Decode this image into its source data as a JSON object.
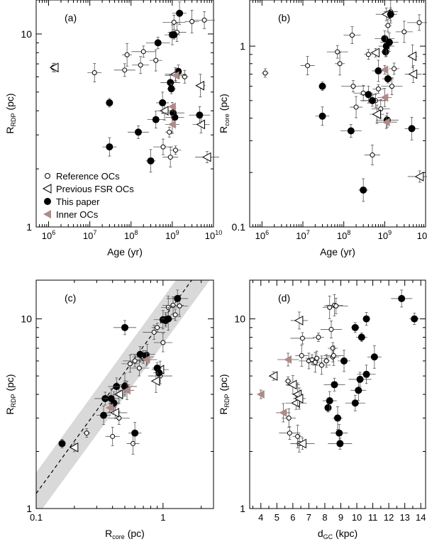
{
  "figure": {
    "panels": [
      {
        "key": "a",
        "panel_label": "(a)"
      },
      {
        "key": "b",
        "panel_label": "(b)"
      },
      {
        "key": "c",
        "panel_label": "(c)"
      },
      {
        "key": "d",
        "panel_label": "(d)"
      }
    ]
  },
  "legend": {
    "entries": [
      {
        "label": "Reference OCs",
        "marker": "open-circle"
      },
      {
        "label": "Previous FSR OCs",
        "marker": "open-triangle-left"
      },
      {
        "label": "This paper",
        "marker": "filled-circle"
      },
      {
        "label": "Inner OCs",
        "marker": "filled-triangle-left"
      }
    ]
  },
  "colors": {
    "inner_ocs": "#b08a88",
    "band": "#d9d9d9"
  },
  "chart_data": [
    {
      "type": "scatter",
      "panel": "a",
      "scale": "log-log",
      "grid": false,
      "legend_position": "bottom-left",
      "xlabel": "Age (yr)",
      "ylabel": "R_RDP (pc)",
      "xlim": [
        500000,
        10000000000
      ],
      "ylim": [
        1,
        15
      ],
      "xticks": [
        {
          "v": 1000000,
          "b": "10",
          "e": "6"
        },
        {
          "v": 10000000,
          "b": "10",
          "e": "7"
        },
        {
          "v": 100000000,
          "b": "10",
          "e": "8"
        },
        {
          "v": 1000000000,
          "b": "10",
          "e": "9"
        },
        {
          "v": 10000000000,
          "b": "10",
          "e": "10"
        }
      ],
      "yticks": [
        {
          "v": 1,
          "t": "1"
        },
        {
          "v": 10,
          "t": "10"
        }
      ],
      "series": [
        {
          "name": "Reference OCs",
          "marker": "open-circle",
          "points": [
            [
              1300000,
              6.7
            ],
            [
              13000000,
              6.3
            ],
            [
              70000000,
              6.5
            ],
            [
              80000000,
              7.8
            ],
            [
              170000000,
              6.9
            ],
            [
              200000000,
              8.1
            ],
            [
              400000000,
              7.3
            ],
            [
              600000000,
              2.6
            ],
            [
              850000000,
              3.1
            ],
            [
              900000000,
              2.3
            ],
            [
              1100000000,
              11.5
            ],
            [
              1200000000,
              2.5
            ],
            [
              1300000000,
              10.2
            ],
            [
              2000000000,
              6.0
            ],
            [
              3000000000,
              11.6
            ],
            [
              6000000000,
              11.8
            ]
          ]
        },
        {
          "name": "Previous FSR OCs",
          "marker": "open-triangle-left",
          "points": [
            [
              1400000,
              6.7
            ],
            [
              650000000,
              4.0
            ],
            [
              1200000000,
              6.2
            ],
            [
              4800000000,
              5.4
            ],
            [
              5000000000,
              3.4
            ],
            [
              7000000000,
              2.3
            ]
          ]
        },
        {
          "name": "This paper",
          "marker": "filled-circle",
          "points": [
            [
              30000000,
              4.4
            ],
            [
              30000000,
              2.6
            ],
            [
              150000000,
              3.1
            ],
            [
              300000000,
              2.2
            ],
            [
              400000000,
              3.6
            ],
            [
              450000000,
              9.0
            ],
            [
              580000000,
              4.4
            ],
            [
              900000000,
              5.6
            ],
            [
              950000000,
              5.2
            ],
            [
              1000000000,
              9.9
            ],
            [
              1050000000,
              3.9
            ],
            [
              1100000000,
              9.9
            ],
            [
              1150000000,
              3.7
            ],
            [
              1400000000,
              6.4
            ],
            [
              1500000000,
              12.8
            ],
            [
              4600000000,
              3.8
            ]
          ]
        },
        {
          "name": "Inner OCs",
          "marker": "filled-triangle-left",
          "points": [
            [
              1000000000,
              4.2
            ],
            [
              1000000000,
              3.4
            ],
            [
              1200000000,
              6.1
            ]
          ]
        }
      ]
    },
    {
      "type": "scatter",
      "panel": "b",
      "scale": "log-log",
      "grid": false,
      "xlabel": "Age (yr)",
      "ylabel": "R_core (pc)",
      "xlim": [
        500000,
        10000000000
      ],
      "ylim": [
        0.1,
        1.8
      ],
      "xticks": [
        {
          "v": 1000000,
          "b": "10",
          "e": "6"
        },
        {
          "v": 10000000,
          "b": "10",
          "e": "7"
        },
        {
          "v": 100000000,
          "b": "10",
          "e": "8"
        },
        {
          "v": 1000000000,
          "b": "10",
          "e": "9"
        },
        {
          "v": 10000000000,
          "b": "10",
          "e": "10"
        }
      ],
      "yticks": [
        {
          "v": 0.1,
          "t": "0.1"
        },
        {
          "v": 1,
          "t": "1"
        }
      ],
      "series": [
        {
          "name": "Reference OCs",
          "marker": "open-circle",
          "points": [
            [
              1200000,
              0.71
            ],
            [
              13000000,
              0.78
            ],
            [
              70000000,
              0.93
            ],
            [
              80000000,
              0.8
            ],
            [
              160000000,
              1.15
            ],
            [
              170000000,
              0.6
            ],
            [
              200000000,
              0.46
            ],
            [
              300000000,
              0.55
            ],
            [
              400000000,
              0.9
            ],
            [
              500000000,
              0.25
            ],
            [
              600000000,
              0.5
            ],
            [
              700000000,
              0.58
            ],
            [
              800000000,
              0.45
            ],
            [
              1200000000,
              1.3
            ],
            [
              1400000000,
              1.55
            ],
            [
              1500000000,
              0.6
            ],
            [
              1700000000,
              0.75
            ],
            [
              3000000000,
              1.2
            ],
            [
              7000000000,
              1.35
            ]
          ]
        },
        {
          "name": "Previous FSR OCs",
          "marker": "open-triangle-left",
          "points": [
            [
              600000000,
              0.92
            ],
            [
              650000000,
              0.42
            ],
            [
              1100000000,
              1.5
            ],
            [
              4800000000,
              0.88
            ],
            [
              5000000000,
              0.7
            ],
            [
              7200000000,
              0.19
            ]
          ]
        },
        {
          "name": "This paper",
          "marker": "filled-circle",
          "points": [
            [
              30000000,
              0.6
            ],
            [
              30000000,
              0.41
            ],
            [
              150000000,
              0.34
            ],
            [
              300000000,
              0.16
            ],
            [
              400000000,
              0.54
            ],
            [
              500000000,
              0.5
            ],
            [
              700000000,
              0.73
            ],
            [
              1000000000,
              1.1
            ],
            [
              1050000000,
              0.93
            ],
            [
              1100000000,
              1.0
            ],
            [
              1150000000,
              0.39
            ],
            [
              1200000000,
              0.66
            ],
            [
              1300000000,
              1.05
            ],
            [
              1400000000,
              1.5
            ],
            [
              4600000000,
              0.35
            ]
          ]
        },
        {
          "name": "Inner OCs",
          "marker": "filled-triangle-left",
          "points": [
            [
              1000000000,
              0.74
            ],
            [
              1000000000,
              0.52
            ],
            [
              1100000000,
              0.38
            ]
          ]
        }
      ]
    },
    {
      "type": "scatter",
      "panel": "c",
      "scale": "log-log",
      "grid": false,
      "xlabel": "R_core (pc)",
      "ylabel": "R_RDP (pc)",
      "xlim": [
        0.1,
        2.5
      ],
      "ylim": [
        1,
        16
      ],
      "xticks": [
        {
          "v": 0.1,
          "t": "0.1"
        },
        {
          "v": 1,
          "t": "1"
        }
      ],
      "yticks": [
        {
          "v": 1,
          "t": "1"
        },
        {
          "v": 10,
          "t": "10"
        }
      ],
      "series": [
        {
          "name": "Reference OCs",
          "marker": "open-circle",
          "points": [
            [
              0.25,
              2.5
            ],
            [
              0.4,
              2.4
            ],
            [
              0.45,
              3.0
            ],
            [
              0.5,
              4.5
            ],
            [
              0.55,
              5.8
            ],
            [
              0.6,
              6.0
            ],
            [
              0.58,
              2.2
            ],
            [
              0.65,
              5.5
            ],
            [
              0.7,
              6.2
            ],
            [
              0.75,
              6.5
            ],
            [
              0.85,
              8.5
            ],
            [
              0.9,
              9.0
            ],
            [
              1.0,
              7.5
            ],
            [
              1.05,
              10.0
            ],
            [
              1.1,
              11.5
            ],
            [
              1.2,
              11.8
            ],
            [
              1.25,
              10.5
            ],
            [
              1.35,
              11.7
            ],
            [
              0.95,
              5.0
            ]
          ]
        },
        {
          "name": "Previous FSR OCs",
          "marker": "open-triangle-left",
          "points": [
            [
              0.2,
              2.1
            ],
            [
              0.45,
              4.0
            ],
            [
              0.7,
              6.3
            ],
            [
              0.88,
              4.7
            ],
            [
              0.95,
              5.4
            ],
            [
              0.42,
              3.2
            ]
          ]
        },
        {
          "name": "This paper",
          "marker": "filled-circle",
          "points": [
            [
              0.16,
              2.2
            ],
            [
              0.34,
              3.1
            ],
            [
              0.35,
              3.8
            ],
            [
              0.41,
              3.6
            ],
            [
              0.43,
              4.4
            ],
            [
              0.5,
              4.4
            ],
            [
              0.6,
              2.5
            ],
            [
              0.66,
              6.5
            ],
            [
              0.73,
              6.4
            ],
            [
              0.39,
              3.8
            ],
            [
              0.5,
              9.0
            ],
            [
              0.93,
              5.2
            ],
            [
              1.0,
              9.9
            ],
            [
              1.05,
              9.8
            ],
            [
              1.1,
              10.0
            ],
            [
              1.3,
              12.8
            ],
            [
              0.9,
              5.5
            ]
          ]
        },
        {
          "name": "Inner OCs",
          "marker": "filled-triangle-left",
          "points": [
            [
              0.38,
              3.4
            ],
            [
              0.52,
              4.2
            ],
            [
              0.74,
              6.1
            ]
          ]
        }
      ]
    },
    {
      "type": "scatter",
      "panel": "d",
      "scale": "linear-log",
      "grid": false,
      "xlabel": "d_GC (kpc)",
      "ylabel": "R_RDP (pc)",
      "xlim": [
        3.3,
        14.3
      ],
      "ylim": [
        1,
        16
      ],
      "xticks": [
        {
          "v": 4,
          "t": "4"
        },
        {
          "v": 5,
          "t": "5"
        },
        {
          "v": 6,
          "t": "6"
        },
        {
          "v": 7,
          "t": "7"
        },
        {
          "v": 8,
          "t": "8"
        },
        {
          "v": 9,
          "t": "9"
        },
        {
          "v": 10,
          "t": "10"
        },
        {
          "v": 11,
          "t": "11"
        },
        {
          "v": 12,
          "t": "12"
        },
        {
          "v": 13,
          "t": "13"
        },
        {
          "v": 14,
          "t": "14"
        }
      ],
      "yticks": [
        {
          "v": 1,
          "t": "1"
        },
        {
          "v": 10,
          "t": "10"
        }
      ],
      "series": [
        {
          "name": "Reference OCs",
          "marker": "open-circle",
          "points": [
            [
              5.7,
              4.7
            ],
            [
              5.75,
              3.0
            ],
            [
              5.8,
              2.5
            ],
            [
              6.3,
              2.4
            ],
            [
              6.4,
              2.2
            ],
            [
              6.6,
              7.9
            ],
            [
              6.55,
              6.4
            ],
            [
              7.0,
              6.0
            ],
            [
              7.2,
              6.1
            ],
            [
              7.4,
              5.9
            ],
            [
              7.5,
              6.2
            ],
            [
              7.6,
              8.0
            ],
            [
              7.8,
              5.7
            ],
            [
              8.1,
              6.0
            ],
            [
              8.3,
              11.5
            ],
            [
              8.4,
              8.8
            ],
            [
              8.5,
              7.0
            ],
            [
              8.6,
              11.8
            ],
            [
              8.7,
              11.7
            ],
            [
              8.5,
              6.3
            ],
            [
              8.55,
              6.4
            ]
          ]
        },
        {
          "name": "Previous FSR OCs",
          "marker": "open-triangle-left",
          "points": [
            [
              4.8,
              5.0
            ],
            [
              6.0,
              4.5
            ],
            [
              6.2,
              3.6
            ],
            [
              6.3,
              4.0
            ],
            [
              6.4,
              9.8
            ],
            [
              6.6,
              2.2
            ],
            [
              6.4,
              3.8
            ]
          ]
        },
        {
          "name": "This paper",
          "marker": "filled-circle",
          "points": [
            [
              8.2,
              3.4
            ],
            [
              8.3,
              3.7
            ],
            [
              8.6,
              4.5
            ],
            [
              8.8,
              3.0
            ],
            [
              8.9,
              2.5
            ],
            [
              8.95,
              2.2
            ],
            [
              9.2,
              6.0
            ],
            [
              9.9,
              3.6
            ],
            [
              9.9,
              9.0
            ],
            [
              10.1,
              4.2
            ],
            [
              10.2,
              4.8
            ],
            [
              10.3,
              8.0
            ],
            [
              10.6,
              5.1
            ],
            [
              10.6,
              10.0
            ],
            [
              11.1,
              6.3
            ],
            [
              12.8,
              12.8
            ],
            [
              13.6,
              10.0
            ]
          ]
        },
        {
          "name": "Inner OCs",
          "marker": "filled-triangle-left",
          "points": [
            [
              4.0,
              4.0
            ],
            [
              5.4,
              3.2
            ],
            [
              5.7,
              6.1
            ]
          ]
        }
      ]
    }
  ],
  "fit_line": {
    "panel": "c",
    "points": [
      [
        0.1,
        1.2
      ],
      [
        2.5,
        23.0
      ]
    ],
    "band_low": [
      [
        0.1,
        0.9
      ],
      [
        2.5,
        17.0
      ]
    ],
    "band_high": [
      [
        0.1,
        1.55
      ],
      [
        2.5,
        30.0
      ]
    ]
  }
}
